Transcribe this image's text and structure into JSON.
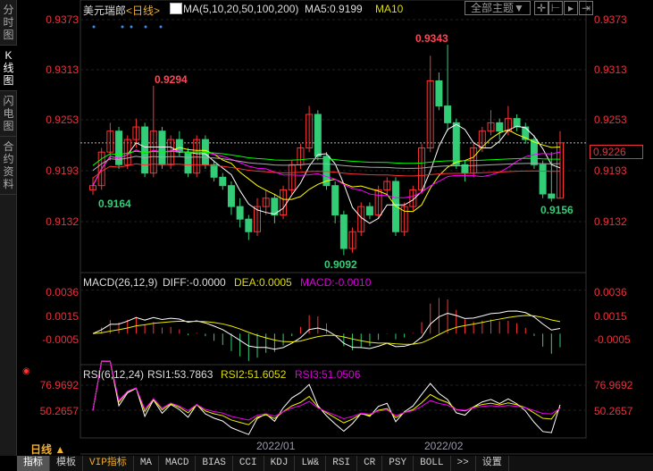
{
  "sidebar": {
    "tabs": [
      "分时图",
      "K线图",
      "闪电图",
      "合约资料"
    ],
    "selected": 1
  },
  "header": {
    "symbol": "美元瑞郎",
    "period": "<日线>",
    "ma_label": "MA(5,10,20,50,100,200)",
    "ma5": "MA5:0.9199",
    "ma10": "MA10",
    "theme_button": "全部主题▼"
  },
  "price_axis": {
    "ticks": [
      "0.9373",
      "0.9313",
      "0.9253",
      "0.9193",
      "0.9132"
    ],
    "current": "0.9226"
  },
  "annotations": {
    "high": "0.9343",
    "high2": "0.9294",
    "low": "0.9092",
    "low2": "0.9164",
    "low3": "0.9156"
  },
  "macd": {
    "label": "MACD(26,12,9)",
    "diff": "DIFF:-0.0000",
    "dea": "DEA:0.0005",
    "macd": "MACD:-0.0010",
    "ticks": [
      "0.0036",
      "0.0015",
      "-0.0005"
    ]
  },
  "rsi": {
    "label": "RSI(6,12,24)",
    "rsi1": "RSI1:53.7863",
    "rsi2": "RSI2:51.6052",
    "rsi3": "RSI3:51.0506",
    "ticks": [
      "76.9692",
      "50.2657"
    ]
  },
  "dates": [
    "2022/01",
    "2022/02"
  ],
  "period_selector": "日线 ▲",
  "toolbar": [
    "指标",
    "模板",
    "VIP指标",
    "MA",
    "MACD",
    "BIAS",
    "CCI",
    "KDJ",
    "LW&",
    "RSI",
    "CR",
    "PSY",
    "BOLL",
    ">>",
    "设置"
  ],
  "colors": {
    "up": "#ff3333",
    "down": "#33cc77",
    "ma5": "#ffffff",
    "ma10": "#ffff00",
    "ma20": "#ff00ff",
    "ma50": "#00ff00",
    "ma100": "#aaaaaa",
    "ma200": "#ff3333"
  },
  "chart_data": {
    "type": "candlestick",
    "ylim": [
      0.9092,
      0.9373
    ],
    "candles": [
      [
        0.917,
        0.9185,
        0.9164,
        0.9175
      ],
      [
        0.9175,
        0.922,
        0.917,
        0.9215
      ],
      [
        0.9215,
        0.925,
        0.9205,
        0.924
      ],
      [
        0.924,
        0.9245,
        0.9195,
        0.92
      ],
      [
        0.92,
        0.9235,
        0.9195,
        0.923
      ],
      [
        0.923,
        0.9255,
        0.922,
        0.9245
      ],
      [
        0.9245,
        0.925,
        0.9185,
        0.919
      ],
      [
        0.919,
        0.9294,
        0.9185,
        0.924
      ],
      [
        0.924,
        0.9245,
        0.9195,
        0.92
      ],
      [
        0.92,
        0.9235,
        0.9195,
        0.923
      ],
      [
        0.923,
        0.924,
        0.921,
        0.9215
      ],
      [
        0.9215,
        0.922,
        0.9185,
        0.919
      ],
      [
        0.919,
        0.9235,
        0.9185,
        0.923
      ],
      [
        0.923,
        0.9235,
        0.9195,
        0.92
      ],
      [
        0.92,
        0.9205,
        0.918,
        0.9185
      ],
      [
        0.9185,
        0.919,
        0.917,
        0.9175
      ],
      [
        0.9175,
        0.918,
        0.914,
        0.915
      ],
      [
        0.915,
        0.916,
        0.9125,
        0.9135
      ],
      [
        0.9135,
        0.914,
        0.911,
        0.912
      ],
      [
        0.912,
        0.916,
        0.9115,
        0.915
      ],
      [
        0.915,
        0.917,
        0.914,
        0.916
      ],
      [
        0.916,
        0.9165,
        0.913,
        0.914
      ],
      [
        0.914,
        0.9175,
        0.9135,
        0.917
      ],
      [
        0.917,
        0.9205,
        0.9165,
        0.92
      ],
      [
        0.92,
        0.9225,
        0.9195,
        0.922
      ],
      [
        0.922,
        0.927,
        0.9215,
        0.926
      ],
      [
        0.926,
        0.9265,
        0.9205,
        0.921
      ],
      [
        0.921,
        0.9215,
        0.917,
        0.9175
      ],
      [
        0.9175,
        0.918,
        0.913,
        0.914
      ],
      [
        0.914,
        0.9145,
        0.9092,
        0.91
      ],
      [
        0.91,
        0.9125,
        0.9095,
        0.912
      ],
      [
        0.912,
        0.9155,
        0.9115,
        0.915
      ],
      [
        0.915,
        0.9155,
        0.9135,
        0.914
      ],
      [
        0.914,
        0.9175,
        0.9135,
        0.917
      ],
      [
        0.917,
        0.9185,
        0.9165,
        0.918
      ],
      [
        0.918,
        0.9185,
        0.9115,
        0.912
      ],
      [
        0.912,
        0.9155,
        0.9115,
        0.915
      ],
      [
        0.915,
        0.9175,
        0.9145,
        0.917
      ],
      [
        0.917,
        0.9225,
        0.9165,
        0.922
      ],
      [
        0.922,
        0.933,
        0.9215,
        0.93
      ],
      [
        0.93,
        0.931,
        0.9265,
        0.927
      ],
      [
        0.927,
        0.9343,
        0.924,
        0.925
      ],
      [
        0.925,
        0.9255,
        0.9195,
        0.92
      ],
      [
        0.92,
        0.9205,
        0.918,
        0.919
      ],
      [
        0.919,
        0.9225,
        0.9185,
        0.922
      ],
      [
        0.922,
        0.9245,
        0.9215,
        0.924
      ],
      [
        0.924,
        0.9265,
        0.9235,
        0.925
      ],
      [
        0.925,
        0.9255,
        0.923,
        0.924
      ],
      [
        0.924,
        0.927,
        0.9235,
        0.9255
      ],
      [
        0.9255,
        0.926,
        0.924,
        0.9245
      ],
      [
        0.9245,
        0.925,
        0.9225,
        0.923
      ],
      [
        0.923,
        0.9235,
        0.9195,
        0.92
      ],
      [
        0.92,
        0.9205,
        0.916,
        0.9165
      ],
      [
        0.9165,
        0.9215,
        0.9156,
        0.916
      ],
      [
        0.916,
        0.924,
        0.916,
        0.9226
      ]
    ]
  }
}
